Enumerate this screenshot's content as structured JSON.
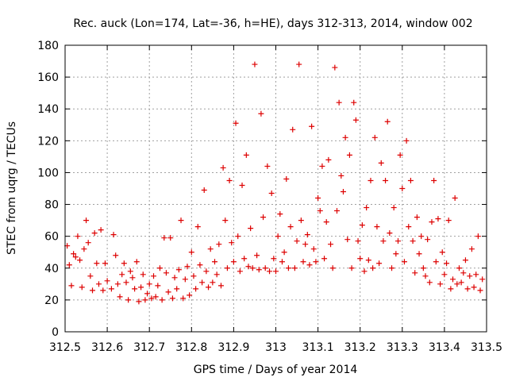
{
  "chart_data": {
    "type": "scatter",
    "title": "Rec. auck (Lon=174, Lat=-36, h=HE), days 312-313, 2014, window 002",
    "xlabel": "GPS time / Days of year 2014",
    "ylabel": "STEC from uqrg / TECUs",
    "xlim": [
      312.5,
      313.5
    ],
    "ylim": [
      0,
      180
    ],
    "xticks": [
      "312.5",
      "312.6",
      "312.7",
      "312.8",
      "312.9",
      "313",
      "313.1",
      "313.2",
      "313.3",
      "313.4",
      "313.5"
    ],
    "yticks": [
      "0",
      "20",
      "40",
      "60",
      "80",
      "100",
      "120",
      "140",
      "160",
      "180"
    ],
    "grid": true,
    "marker": "+",
    "color": "#dd0000",
    "series": [
      {
        "name": "STEC",
        "points": [
          [
            312.505,
            54
          ],
          [
            312.51,
            42
          ],
          [
            312.515,
            29
          ],
          [
            312.52,
            49
          ],
          [
            312.525,
            47
          ],
          [
            312.53,
            60
          ],
          [
            312.535,
            45
          ],
          [
            312.54,
            28
          ],
          [
            312.545,
            52
          ],
          [
            312.55,
            70
          ],
          [
            312.555,
            56
          ],
          [
            312.56,
            35
          ],
          [
            312.565,
            26
          ],
          [
            312.57,
            62
          ],
          [
            312.575,
            43
          ],
          [
            312.58,
            30
          ],
          [
            312.585,
            64
          ],
          [
            312.59,
            26
          ],
          [
            312.595,
            43
          ],
          [
            312.6,
            32
          ],
          [
            312.61,
            27
          ],
          [
            312.615,
            61
          ],
          [
            312.62,
            48
          ],
          [
            312.625,
            30
          ],
          [
            312.63,
            22
          ],
          [
            312.635,
            36
          ],
          [
            312.64,
            43
          ],
          [
            312.645,
            31
          ],
          [
            312.65,
            20
          ],
          [
            312.655,
            38
          ],
          [
            312.66,
            34
          ],
          [
            312.665,
            27
          ],
          [
            312.67,
            44
          ],
          [
            312.675,
            19
          ],
          [
            312.68,
            28
          ],
          [
            312.685,
            36
          ],
          [
            312.69,
            20
          ],
          [
            312.695,
            24
          ],
          [
            312.7,
            30
          ],
          [
            312.705,
            21
          ],
          [
            312.71,
            35
          ],
          [
            312.715,
            22
          ],
          [
            312.72,
            29
          ],
          [
            312.725,
            40
          ],
          [
            312.73,
            20
          ],
          [
            312.735,
            59
          ],
          [
            312.74,
            37
          ],
          [
            312.745,
            25
          ],
          [
            312.75,
            59
          ],
          [
            312.755,
            21
          ],
          [
            312.76,
            34
          ],
          [
            312.765,
            27
          ],
          [
            312.77,
            39
          ],
          [
            312.775,
            70
          ],
          [
            312.78,
            21
          ],
          [
            312.785,
            33
          ],
          [
            312.79,
            41
          ],
          [
            312.795,
            23
          ],
          [
            312.8,
            50
          ],
          [
            312.805,
            35
          ],
          [
            312.81,
            27
          ],
          [
            312.815,
            66
          ],
          [
            312.82,
            42
          ],
          [
            312.825,
            31
          ],
          [
            312.83,
            89
          ],
          [
            312.835,
            38
          ],
          [
            312.84,
            28
          ],
          [
            312.845,
            52
          ],
          [
            312.85,
            31
          ],
          [
            312.855,
            44
          ],
          [
            312.86,
            36
          ],
          [
            312.865,
            55
          ],
          [
            312.87,
            29
          ],
          [
            312.875,
            103
          ],
          [
            312.88,
            70
          ],
          [
            312.885,
            40
          ],
          [
            312.89,
            95
          ],
          [
            312.895,
            56
          ],
          [
            312.9,
            44
          ],
          [
            312.905,
            131
          ],
          [
            312.91,
            60
          ],
          [
            312.915,
            38
          ],
          [
            312.92,
            92
          ],
          [
            312.925,
            46
          ],
          [
            312.93,
            111
          ],
          [
            312.935,
            41
          ],
          [
            312.94,
            65
          ],
          [
            312.945,
            40
          ],
          [
            312.95,
            168
          ],
          [
            312.955,
            48
          ],
          [
            312.96,
            39
          ],
          [
            312.965,
            137
          ],
          [
            312.97,
            72
          ],
          [
            312.975,
            40
          ],
          [
            312.98,
            104
          ],
          [
            312.985,
            38
          ],
          [
            312.99,
            87
          ],
          [
            312.995,
            46
          ],
          [
            313.0,
            38
          ],
          [
            313.005,
            60
          ],
          [
            313.01,
            74
          ],
          [
            313.015,
            44
          ],
          [
            313.02,
            50
          ],
          [
            313.025,
            96
          ],
          [
            313.03,
            40
          ],
          [
            313.035,
            66
          ],
          [
            313.04,
            127
          ],
          [
            313.045,
            40
          ],
          [
            313.05,
            57
          ],
          [
            313.055,
            168
          ],
          [
            313.06,
            70
          ],
          [
            313.065,
            44
          ],
          [
            313.07,
            55
          ],
          [
            313.075,
            61
          ],
          [
            313.08,
            42
          ],
          [
            313.085,
            129
          ],
          [
            313.09,
            52
          ],
          [
            313.095,
            44
          ],
          [
            313.1,
            84
          ],
          [
            313.105,
            76
          ],
          [
            313.11,
            104
          ],
          [
            313.115,
            46
          ],
          [
            313.12,
            69
          ],
          [
            313.125,
            108
          ],
          [
            313.13,
            55
          ],
          [
            313.135,
            40
          ],
          [
            313.14,
            166
          ],
          [
            313.145,
            76
          ],
          [
            313.15,
            144
          ],
          [
            313.155,
            98
          ],
          [
            313.16,
            88
          ],
          [
            313.165,
            122
          ],
          [
            313.17,
            58
          ],
          [
            313.175,
            111
          ],
          [
            313.18,
            40
          ],
          [
            313.185,
            144
          ],
          [
            313.19,
            133
          ],
          [
            313.195,
            57
          ],
          [
            313.2,
            46
          ],
          [
            313.205,
            67
          ],
          [
            313.21,
            38
          ],
          [
            313.215,
            78
          ],
          [
            313.22,
            45
          ],
          [
            313.225,
            95
          ],
          [
            313.23,
            40
          ],
          [
            313.235,
            122
          ],
          [
            313.24,
            66
          ],
          [
            313.245,
            43
          ],
          [
            313.25,
            106
          ],
          [
            313.255,
            57
          ],
          [
            313.26,
            95
          ],
          [
            313.265,
            132
          ],
          [
            313.27,
            62
          ],
          [
            313.275,
            40
          ],
          [
            313.28,
            78
          ],
          [
            313.285,
            49
          ],
          [
            313.29,
            57
          ],
          [
            313.295,
            111
          ],
          [
            313.3,
            90
          ],
          [
            313.305,
            44
          ],
          [
            313.31,
            120
          ],
          [
            313.315,
            66
          ],
          [
            313.32,
            95
          ],
          [
            313.325,
            57
          ],
          [
            313.33,
            37
          ],
          [
            313.335,
            72
          ],
          [
            313.34,
            49
          ],
          [
            313.345,
            60
          ],
          [
            313.35,
            40
          ],
          [
            313.355,
            35
          ],
          [
            313.36,
            58
          ],
          [
            313.365,
            31
          ],
          [
            313.37,
            69
          ],
          [
            313.375,
            95
          ],
          [
            313.38,
            44
          ],
          [
            313.385,
            71
          ],
          [
            313.39,
            30
          ],
          [
            313.395,
            50
          ],
          [
            313.4,
            36
          ],
          [
            313.405,
            43
          ],
          [
            313.41,
            70
          ],
          [
            313.415,
            27
          ],
          [
            313.42,
            33
          ],
          [
            313.425,
            84
          ],
          [
            313.43,
            30
          ],
          [
            313.435,
            40
          ],
          [
            313.44,
            31
          ],
          [
            313.445,
            37
          ],
          [
            313.45,
            45
          ],
          [
            313.455,
            27
          ],
          [
            313.46,
            35
          ],
          [
            313.465,
            52
          ],
          [
            313.47,
            28
          ],
          [
            313.475,
            36
          ],
          [
            313.48,
            60
          ],
          [
            313.485,
            26
          ],
          [
            313.49,
            33
          ]
        ]
      }
    ]
  }
}
